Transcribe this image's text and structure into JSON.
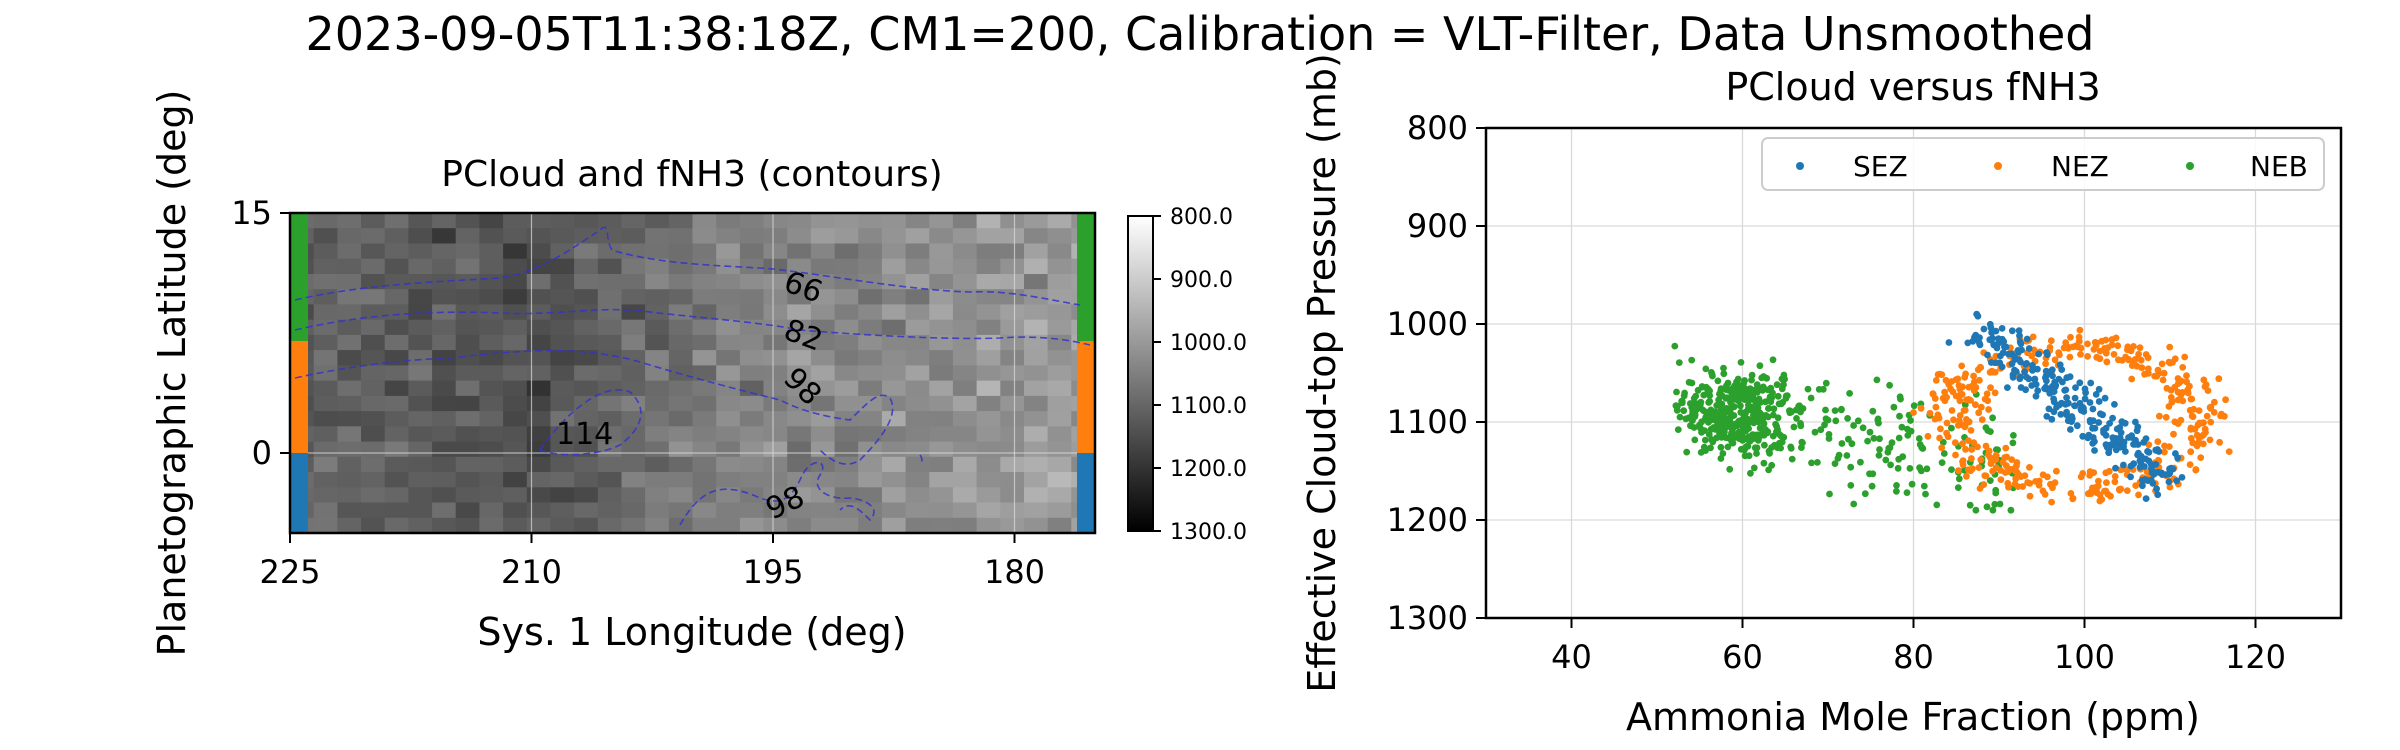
{
  "figure": {
    "suptitle": "2023-09-05T11:38:18Z, CM1=200, Calibration = VLT-Filter, Data Unsmoothed"
  },
  "chart_data": [
    {
      "type": "heatmap",
      "title": "PCloud and fNH3 (contours)",
      "xlabel": "Sys. 1 Longitude (deg)",
      "ylabel": "Planetographic Latitude (deg)",
      "xlim": [
        225,
        175
      ],
      "ylim": [
        -5,
        15
      ],
      "xticks": [
        225,
        210,
        195,
        180
      ],
      "yticks": [
        15,
        0
      ],
      "grid": true,
      "colormap": "gray_r",
      "colorbar": {
        "range": [
          800,
          1300
        ],
        "ticks": [
          "800.0",
          "900.0",
          "1000.0",
          "1100.0",
          "1200.0",
          "1300.0"
        ]
      },
      "latitude_bands": [
        {
          "name": "NEB",
          "color": "#2ca02c",
          "lat_range": [
            7,
            15
          ]
        },
        {
          "name": "NEZ",
          "color": "#ff7f0e",
          "lat_range": [
            0,
            7
          ]
        },
        {
          "name": "SEZ",
          "color": "#1f77b4",
          "lat_range": [
            -5,
            0
          ]
        }
      ],
      "contour_labels": [
        "66",
        "82",
        "98",
        "114",
        "98"
      ],
      "contour_color": "#3333cc"
    },
    {
      "type": "scatter",
      "title": "PCloud versus fNH3",
      "xlabel": "Ammonia Mole Fraction (ppm)",
      "ylabel": "Effective Cloud-top Pressure (mb)",
      "xlim": [
        30,
        130
      ],
      "ylim": [
        1300,
        800
      ],
      "xticks": [
        40,
        60,
        80,
        100,
        120
      ],
      "yticks": [
        800,
        900,
        1000,
        1100,
        1200,
        1300
      ],
      "grid": true,
      "legend_position": "top",
      "series": [
        {
          "name": "SEZ",
          "color": "#1f77b4",
          "center": [
            100,
            1100
          ],
          "approx_count": 260
        },
        {
          "name": "NEZ",
          "color": "#ff7f0e",
          "center": [
            100,
            1110
          ],
          "approx_count": 420
        },
        {
          "name": "NEB",
          "color": "#2ca02c",
          "center": [
            65,
            1100
          ],
          "approx_count": 520
        }
      ]
    }
  ]
}
